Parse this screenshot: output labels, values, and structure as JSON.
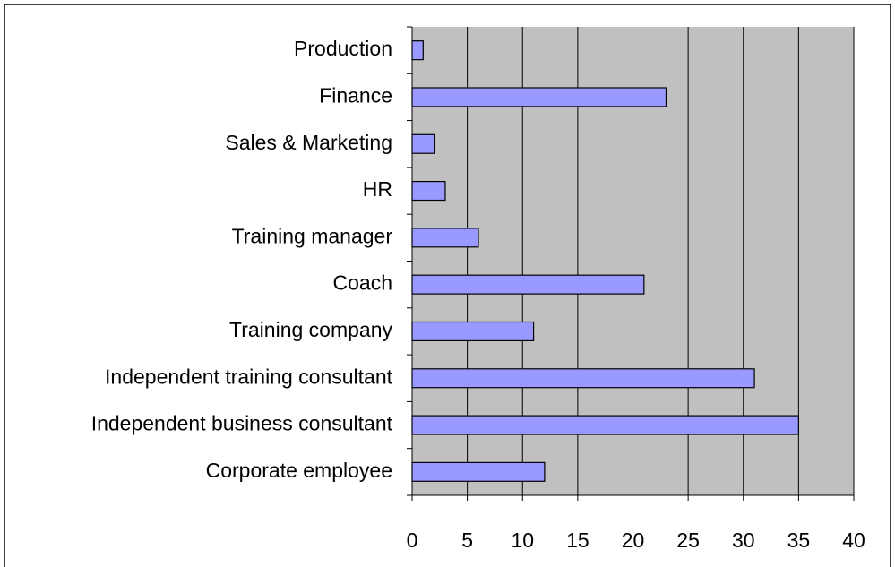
{
  "chart_data": {
    "type": "barh",
    "categories": [
      "Production",
      "Finance",
      "Sales & Marketing",
      "HR",
      "Training manager",
      "Coach",
      "Training company",
      "Independent training consultant",
      "Independent business consultant",
      "Corporate employee"
    ],
    "values": [
      1,
      23,
      2,
      3,
      6,
      21,
      11,
      31,
      35,
      12
    ],
    "color": "#9999ff",
    "xlim": [
      0,
      40
    ],
    "xticks": [
      0,
      5,
      10,
      15,
      20,
      25,
      30,
      35,
      40
    ],
    "grid": true
  }
}
